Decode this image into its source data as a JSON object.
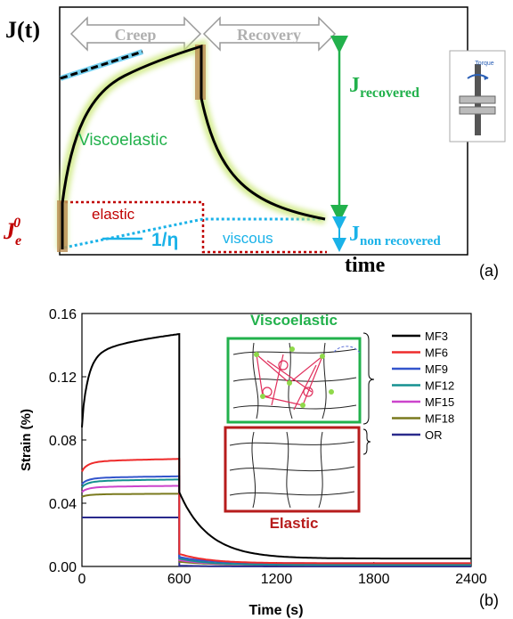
{
  "panel_a": {
    "ylabel": "J(t)",
    "xlabel": "time",
    "creep_label": "Creep",
    "recovery_label": "Recovery",
    "viscoelastic_label": "Viscoelastic",
    "elastic_label": "elastic",
    "viscous_label": "viscous",
    "slope_label": "1/η",
    "je0_main": "J",
    "je0_sub": "e",
    "je0_sup": "0",
    "j_recovered_main": "J",
    "j_recovered_sub": "recovered",
    "j_nonrecovered_main": "J",
    "j_nonrecovered_sub": "non recovered",
    "torque_label": "Torque",
    "panel_tag": "(a)",
    "colors": {
      "viscoelastic": "#22b14c",
      "elastic": "#c00000",
      "viscous": "#1ab2e8",
      "recovered": "#22b14c"
    }
  },
  "panel_b": {
    "panel_tag": "(b)",
    "inset_viscoelastic": "Viscoelastic",
    "inset_elastic": "Elastic"
  },
  "chart_data": {
    "type": "line",
    "xlabel": "Time (s)",
    "ylabel": "Strain (%)",
    "xlim": [
      0,
      2400
    ],
    "ylim": [
      0,
      0.16
    ],
    "x_ticks": [
      "0",
      "600",
      "1200",
      "1800",
      "2400"
    ],
    "y_ticks": [
      "0.00",
      "0.04",
      "0.08",
      "0.12",
      "0.16"
    ],
    "legend_placement": "top-right",
    "series": [
      {
        "name": "MF3",
        "color": "#000000",
        "creep_start": 0.088,
        "creep_end": 0.147,
        "drop_to": 0.047,
        "final": 0.005
      },
      {
        "name": "MF6",
        "color": "#ee2b2b",
        "creep_start": 0.06,
        "creep_end": 0.068,
        "drop_to": 0.008,
        "final": 0.002
      },
      {
        "name": "MF9",
        "color": "#3355cc",
        "creep_start": 0.052,
        "creep_end": 0.057,
        "drop_to": 0.006,
        "final": 0.002
      },
      {
        "name": "MF12",
        "color": "#159090",
        "creep_start": 0.05,
        "creep_end": 0.055,
        "drop_to": 0.005,
        "final": 0.001
      },
      {
        "name": "MF15",
        "color": "#cc44cc",
        "creep_start": 0.047,
        "creep_end": 0.051,
        "drop_to": 0.004,
        "final": 0.001
      },
      {
        "name": "MF18",
        "color": "#7a7a1e",
        "creep_start": 0.044,
        "creep_end": 0.046,
        "drop_to": 0.003,
        "final": 0.001
      },
      {
        "name": "OR",
        "color": "#2a2a8c",
        "creep_start": 0.031,
        "creep_end": 0.031,
        "drop_to": 0.0005,
        "final": 0.0
      }
    ]
  }
}
